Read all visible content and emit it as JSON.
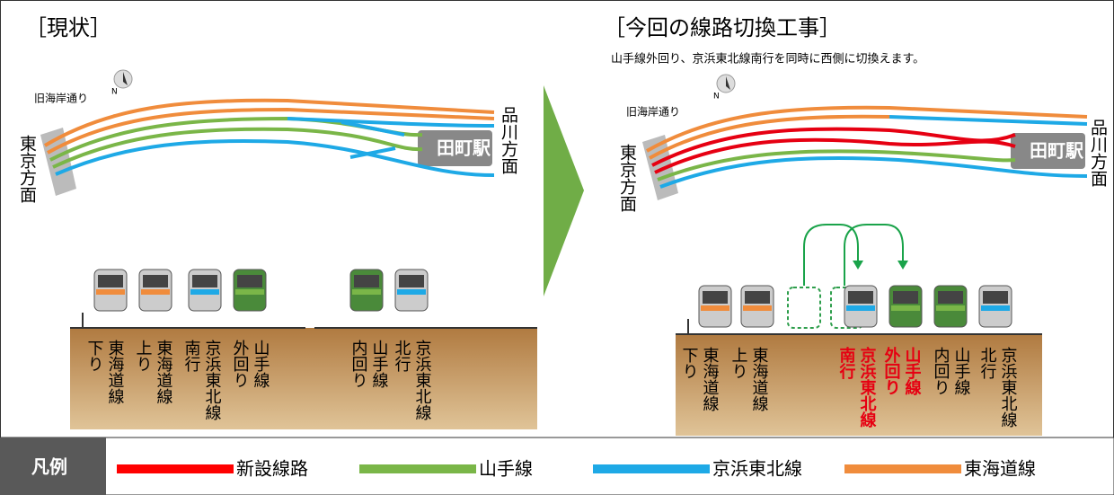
{
  "left": {
    "title": "［現状］",
    "compass": "N",
    "street": "旧海岸通り",
    "tokyo": "東京方面",
    "shinagawa": "品川方面",
    "station": "田町駅",
    "tracks": [
      {
        "line": "東海道線",
        "dir": "下り"
      },
      {
        "line": "東海道線",
        "dir": "上り"
      },
      {
        "line": "京浜東北線",
        "dir": "南行"
      },
      {
        "line": "山手線",
        "dir": "外回り"
      },
      {
        "line": "山手線",
        "dir": "内回り"
      },
      {
        "line": "京浜東北線",
        "dir": "北行"
      }
    ]
  },
  "right": {
    "title": "［今回の線路切換工事］",
    "subtitle": "山手線外回り、京浜東北線南行を同時に西側に切換えます。",
    "compass": "N",
    "street": "旧海岸通り",
    "tokyo": "東京方面",
    "shinagawa": "品川方面",
    "station": "田町駅",
    "tracks": [
      {
        "line": "東海道線",
        "dir": "下り",
        "color": "#000000"
      },
      {
        "line": "東海道線",
        "dir": "上り",
        "color": "#000000"
      },
      {
        "line": "京浜東北線",
        "dir": "南行",
        "color": "#e60012"
      },
      {
        "line": "山手線",
        "dir": "外回り",
        "color": "#e60012"
      },
      {
        "line": "山手線",
        "dir": "内回り",
        "color": "#000000"
      },
      {
        "line": "京浜東北線",
        "dir": "北行",
        "color": "#000000"
      }
    ]
  },
  "legend": {
    "title": "凡例",
    "items": [
      {
        "label": "新設線路",
        "color": "#ff0000"
      },
      {
        "label": "山手線",
        "color": "#7ab648"
      },
      {
        "label": "京浜東北線",
        "color": "#1ea9e6"
      },
      {
        "label": "東海道線",
        "color": "#f08c3c"
      }
    ]
  }
}
